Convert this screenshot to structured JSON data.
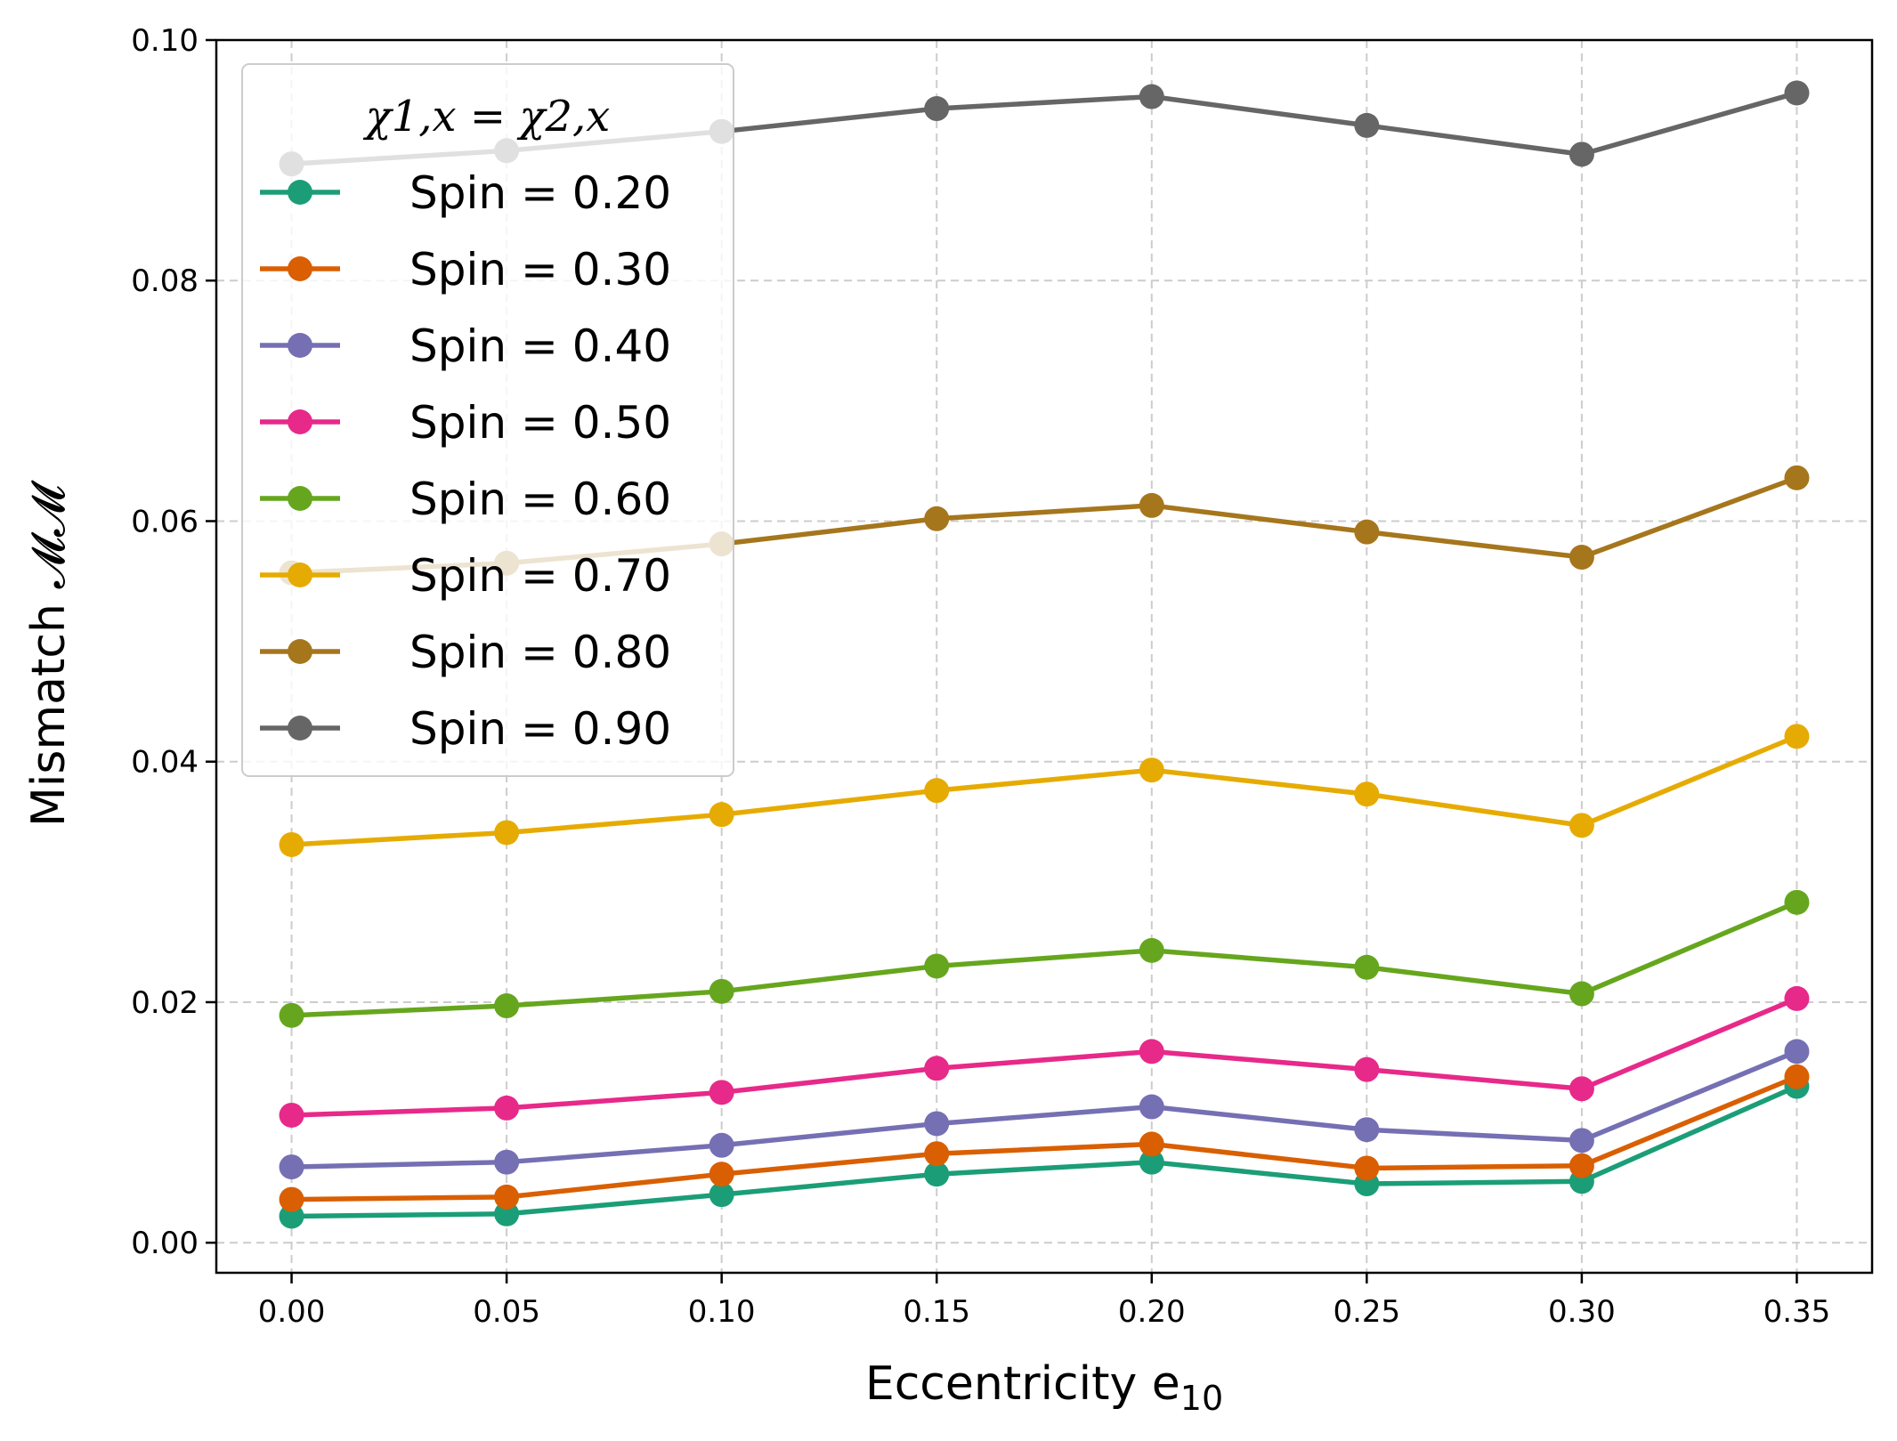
{
  "chart_data": {
    "type": "line",
    "xlabel": "Eccentricity e",
    "xlabel_subscript": "10",
    "ylabel": "Mismatch 𝓜𝓜",
    "xlim": [
      -0.0175,
      0.3675
    ],
    "ylim": [
      -0.0025,
      0.1
    ],
    "x": [
      0.0,
      0.05,
      0.1,
      0.15,
      0.2,
      0.25,
      0.3,
      0.35
    ],
    "xticks": [
      "0.00",
      "0.05",
      "0.10",
      "0.15",
      "0.20",
      "0.25",
      "0.30",
      "0.35"
    ],
    "yticks": [
      "0.00",
      "0.02",
      "0.04",
      "0.06",
      "0.08",
      "0.10"
    ],
    "ytick_values": [
      0.0,
      0.02,
      0.04,
      0.06,
      0.08,
      0.1
    ],
    "grid": true,
    "legend_title": "χ1,x = χ2,x",
    "legend_location": "top-left",
    "series": [
      {
        "name": "Spin = 0.20",
        "color": "#1b9e77",
        "values": [
          0.0022,
          0.0024,
          0.004,
          0.0057,
          0.0067,
          0.0049,
          0.0051,
          0.013
        ]
      },
      {
        "name": "Spin = 0.30",
        "color": "#d95f02",
        "values": [
          0.0036,
          0.0038,
          0.0057,
          0.0074,
          0.0082,
          0.0062,
          0.0064,
          0.0138
        ]
      },
      {
        "name": "Spin = 0.40",
        "color": "#7570b3",
        "values": [
          0.0063,
          0.0067,
          0.0081,
          0.0099,
          0.0113,
          0.0094,
          0.0085,
          0.0159
        ]
      },
      {
        "name": "Spin = 0.50",
        "color": "#e7298a",
        "values": [
          0.0106,
          0.0112,
          0.0125,
          0.0145,
          0.0159,
          0.0144,
          0.0128,
          0.0203
        ]
      },
      {
        "name": "Spin = 0.60",
        "color": "#66a61e",
        "values": [
          0.0189,
          0.0197,
          0.0209,
          0.023,
          0.0243,
          0.0229,
          0.0207,
          0.0283
        ]
      },
      {
        "name": "Spin = 0.70",
        "color": "#e6ab02",
        "values": [
          0.0331,
          0.0341,
          0.0356,
          0.0376,
          0.0393,
          0.0373,
          0.0347,
          0.0421
        ]
      },
      {
        "name": "Spin = 0.80",
        "color": "#a6761d",
        "values": [
          0.0557,
          0.0565,
          0.0581,
          0.0602,
          0.0613,
          0.0591,
          0.057,
          0.0636
        ]
      },
      {
        "name": "Spin = 0.90",
        "color": "#666666",
        "values": [
          0.0897,
          0.0908,
          0.0924,
          0.0943,
          0.0953,
          0.0929,
          0.0905,
          0.0956
        ]
      }
    ]
  }
}
